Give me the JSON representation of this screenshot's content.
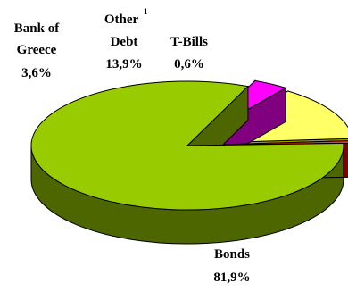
{
  "chart_data": {
    "type": "pie",
    "style": "3d-exploded",
    "slices": [
      {
        "label": "Bonds",
        "value": 81.9,
        "value_label": "81,9%",
        "color": "#99cc00",
        "side_color": "#4d6600"
      },
      {
        "label": "Bank of Greece",
        "value": 3.6,
        "value_label": "3,6%",
        "color": "#ff00ff",
        "side_color": "#800080"
      },
      {
        "label": "Other",
        "superscript": "1",
        "label_line2": "Debt",
        "value": 13.9,
        "value_label": "13,9%",
        "color": "#ffff66",
        "side_color": "#999900"
      },
      {
        "label": "T-Bills",
        "value": 0.6,
        "value_label": "0,6%",
        "color": "#ff3333",
        "side_color": "#800000"
      }
    ],
    "labels": {
      "bank_line1": "Bank of",
      "bank_line2": "Greece",
      "other_line1": "Other",
      "other_sup": "1",
      "other_line2": "Debt",
      "tbills": "T-Bills"
    }
  }
}
